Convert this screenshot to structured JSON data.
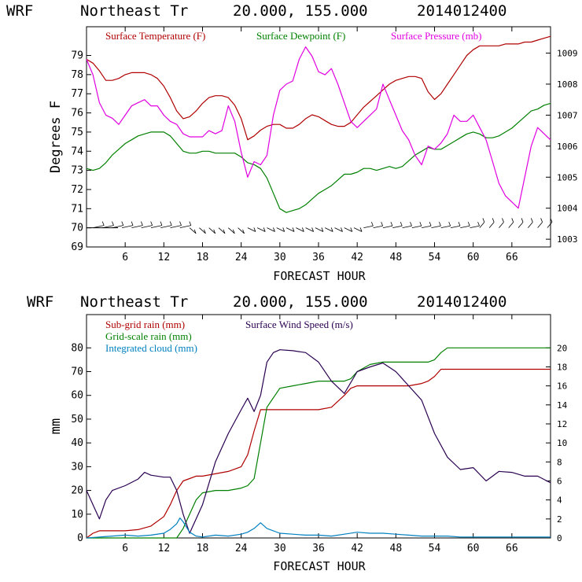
{
  "header_top": {
    "model": "WRF",
    "place": "Northeast Tr",
    "coords": "20.000, 155.000",
    "date": "2014012400"
  },
  "header_bottom": {
    "model": "WRF",
    "place": "Northeast Tr",
    "coords": "20.000, 155.000",
    "date": "2014012400"
  },
  "chart_data": [
    {
      "type": "line",
      "xlabel": "FORECAST HOUR",
      "ylabel": "Degrees F",
      "xlim": [
        0,
        72
      ],
      "ylim": [
        69,
        80.5
      ],
      "y2lim": [
        1002.75,
        1009.85
      ],
      "xticks": [
        6,
        12,
        18,
        24,
        30,
        36,
        42,
        48,
        54,
        60,
        66
      ],
      "yticks": [
        69,
        70,
        71,
        72,
        73,
        74,
        75,
        76,
        77,
        78,
        79
      ],
      "y2ticks": [
        1003,
        1004,
        1005,
        1006,
        1007,
        1008,
        1009
      ],
      "legend": [
        {
          "label": "Surface Temperature (F)",
          "color": "#b00000"
        },
        {
          "label": "Surface Dewpoint (F)",
          "color": "#008000"
        },
        {
          "label": "Surface Pressure (mb)",
          "color": "#e000e0"
        }
      ],
      "series": [
        {
          "name": "Surface Temperature (F)",
          "color": "#b00000",
          "axis": "left",
          "x": [
            0,
            1,
            2,
            3,
            4,
            5,
            6,
            7,
            8,
            9,
            10,
            11,
            12,
            13,
            14,
            15,
            16,
            17,
            18,
            19,
            20,
            21,
            22,
            23,
            24,
            25,
            26,
            27,
            28,
            29,
            30,
            31,
            32,
            33,
            34,
            35,
            36,
            37,
            38,
            39,
            40,
            41,
            42,
            43,
            44,
            45,
            46,
            47,
            48,
            49,
            50,
            51,
            52,
            53,
            54,
            55,
            56,
            57,
            58,
            59,
            60,
            61,
            62,
            63,
            64,
            65,
            66,
            67,
            68,
            69,
            70,
            71,
            72
          ],
          "y": [
            78.8,
            78.6,
            78.2,
            77.7,
            77.7,
            77.8,
            78.0,
            78.1,
            78.1,
            78.1,
            78.0,
            77.8,
            77.4,
            76.8,
            76.1,
            75.7,
            75.8,
            76.1,
            76.5,
            76.8,
            76.9,
            76.9,
            76.8,
            76.4,
            75.7,
            74.6,
            74.8,
            75.1,
            75.3,
            75.4,
            75.4,
            75.2,
            75.2,
            75.4,
            75.7,
            75.9,
            75.8,
            75.6,
            75.4,
            75.3,
            75.3,
            75.5,
            75.9,
            76.3,
            76.6,
            76.9,
            77.2,
            77.5,
            77.7,
            77.8,
            77.9,
            77.9,
            77.8,
            77.1,
            76.7,
            77.0,
            77.5,
            78.0,
            78.5,
            79.0,
            79.3,
            79.5,
            79.5,
            79.5,
            79.5,
            79.6,
            79.6,
            79.6,
            79.7,
            79.7,
            79.8,
            79.9,
            80.0
          ]
        },
        {
          "name": "Surface Dewpoint (F)",
          "color": "#008000",
          "axis": "left",
          "x": [
            0,
            1,
            2,
            3,
            4,
            5,
            6,
            7,
            8,
            9,
            10,
            11,
            12,
            13,
            14,
            15,
            16,
            17,
            18,
            19,
            20,
            21,
            22,
            23,
            24,
            25,
            26,
            27,
            28,
            29,
            30,
            31,
            32,
            33,
            34,
            35,
            36,
            37,
            38,
            39,
            40,
            41,
            42,
            43,
            44,
            45,
            46,
            47,
            48,
            49,
            50,
            51,
            52,
            53,
            54,
            55,
            56,
            57,
            58,
            59,
            60,
            61,
            62,
            63,
            64,
            65,
            66,
            67,
            68,
            69,
            70,
            71,
            72
          ],
          "y": [
            73.1,
            73.0,
            73.1,
            73.4,
            73.8,
            74.1,
            74.4,
            74.6,
            74.8,
            74.9,
            75.0,
            75.0,
            75.0,
            74.8,
            74.4,
            74.0,
            73.9,
            73.9,
            74.0,
            74.0,
            73.9,
            73.9,
            73.9,
            73.9,
            73.7,
            73.4,
            73.3,
            73.1,
            72.6,
            71.8,
            71.0,
            70.8,
            70.9,
            71.0,
            71.2,
            71.5,
            71.8,
            72.0,
            72.2,
            72.5,
            72.8,
            72.8,
            72.9,
            73.1,
            73.1,
            73.0,
            73.1,
            73.2,
            73.1,
            73.2,
            73.5,
            73.8,
            74.0,
            74.2,
            74.1,
            74.1,
            74.3,
            74.5,
            74.7,
            74.9,
            75.0,
            74.9,
            74.7,
            74.7,
            74.8,
            75.0,
            75.2,
            75.5,
            75.8,
            76.1,
            76.2,
            76.4,
            76.5
          ]
        },
        {
          "name": "Surface Pressure (mb)",
          "color": "#e000e0",
          "axis": "right",
          "x": [
            0,
            1,
            2,
            3,
            4,
            5,
            6,
            7,
            8,
            9,
            10,
            11,
            12,
            13,
            14,
            15,
            16,
            17,
            18,
            19,
            20,
            21,
            22,
            23,
            24,
            25,
            26,
            27,
            28,
            29,
            30,
            31,
            32,
            33,
            34,
            35,
            36,
            37,
            38,
            39,
            40,
            41,
            42,
            43,
            44,
            45,
            46,
            47,
            48,
            49,
            50,
            51,
            52,
            53,
            54,
            55,
            56,
            57,
            58,
            59,
            60,
            61,
            62,
            63,
            64,
            65,
            66,
            67,
            68,
            69,
            70,
            71,
            72
          ],
          "y": [
            1008.8,
            1008.3,
            1007.4,
            1007.0,
            1006.9,
            1006.7,
            1007.0,
            1007.3,
            1007.4,
            1007.5,
            1007.3,
            1007.3,
            1007.0,
            1006.8,
            1006.7,
            1006.4,
            1006.3,
            1006.3,
            1006.3,
            1006.5,
            1006.4,
            1006.5,
            1007.3,
            1006.8,
            1005.8,
            1005.0,
            1005.5,
            1005.4,
            1005.7,
            1007.0,
            1007.8,
            1008.0,
            1008.1,
            1008.8,
            1009.2,
            1008.9,
            1008.4,
            1008.3,
            1008.5,
            1008.0,
            1007.4,
            1006.8,
            1006.6,
            1006.8,
            1007.0,
            1007.2,
            1008.0,
            1007.5,
            1007.0,
            1006.5,
            1006.2,
            1005.7,
            1005.4,
            1006.0,
            1005.9,
            1006.1,
            1006.4,
            1007.0,
            1006.8,
            1006.8,
            1007.0,
            1006.6,
            1006.2,
            1005.5,
            1004.8,
            1004.4,
            1004.2,
            1004.0,
            1005.0,
            1006.0,
            1006.6,
            1006.4,
            1006.2
          ]
        }
      ],
      "wind_barbs": "surface wind barbs along 70°F line"
    },
    {
      "type": "line",
      "xlabel": "FORECAST HOUR",
      "ylabel": "mm",
      "xlim": [
        0,
        72
      ],
      "ylim": [
        0,
        94
      ],
      "y2lim": [
        0,
        23.5
      ],
      "xticks": [
        6,
        12,
        18,
        24,
        30,
        36,
        42,
        48,
        54,
        60,
        66
      ],
      "yticks": [
        0,
        10,
        20,
        30,
        40,
        50,
        60,
        70,
        80
      ],
      "y2ticks": [
        0,
        2,
        4,
        6,
        8,
        10,
        12,
        14,
        16,
        18,
        20
      ],
      "legend": [
        {
          "label": "Sub-grid rain (mm)",
          "color": "#b00000"
        },
        {
          "label": "Surface Wind Speed (m/s)",
          "color": "#2a0050"
        },
        {
          "label": "Grid-scale rain (mm)",
          "color": "#008000"
        },
        {
          "label": "Integrated cloud (mm)",
          "color": "#0080c0"
        }
      ],
      "series": [
        {
          "name": "Sub-grid rain (mm)",
          "color": "#b00000",
          "axis": "left",
          "x": [
            0,
            1,
            2,
            6,
            8,
            10,
            12,
            13,
            14,
            15,
            16,
            17,
            18,
            20,
            22,
            24,
            25,
            26,
            27,
            28,
            30,
            32,
            34,
            36,
            38,
            40,
            41,
            42,
            44,
            46,
            48,
            50,
            52,
            53,
            54,
            55,
            56,
            58,
            60,
            62,
            64,
            66,
            68,
            70,
            72
          ],
          "y": [
            0,
            2,
            3,
            3,
            3.5,
            5,
            9,
            14,
            20,
            24,
            25,
            26,
            26,
            27,
            28,
            30,
            35,
            45,
            54,
            54,
            54,
            54,
            54,
            54,
            55,
            60,
            63,
            64,
            64,
            64,
            64,
            64,
            65,
            66,
            68,
            71,
            71,
            71,
            71,
            71,
            71,
            71,
            71,
            71,
            71
          ]
        },
        {
          "name": "Grid-scale rain (mm)",
          "color": "#008000",
          "axis": "left",
          "x": [
            0,
            14,
            15,
            16,
            17,
            18,
            20,
            22,
            24,
            25,
            26,
            27,
            28,
            30,
            32,
            34,
            36,
            38,
            40,
            41,
            42,
            44,
            46,
            48,
            50,
            52,
            53,
            54,
            55,
            56,
            58,
            60,
            62,
            64,
            66,
            68,
            70,
            72
          ],
          "y": [
            0,
            0,
            4,
            10,
            16,
            19,
            20,
            20,
            21,
            22,
            25,
            40,
            55,
            63,
            64,
            65,
            66,
            66,
            66,
            67,
            70,
            73,
            74,
            74,
            74,
            74,
            74,
            75,
            78,
            80,
            80,
            80,
            80,
            80,
            80,
            80,
            80,
            80
          ]
        },
        {
          "name": "Surface Wind Speed (m/s)",
          "color": "#2a0050",
          "axis": "right",
          "x": [
            0,
            1,
            2,
            3,
            4,
            6,
            8,
            9,
            10,
            12,
            13,
            14,
            15,
            16,
            18,
            20,
            22,
            24,
            25,
            26,
            27,
            28,
            29,
            30,
            32,
            34,
            36,
            38,
            40,
            42,
            44,
            46,
            48,
            50,
            52,
            54,
            56,
            58,
            60,
            62,
            64,
            66,
            68,
            70,
            72
          ],
          "y": [
            5,
            3.5,
            2,
            4,
            5,
            5.5,
            6.2,
            6.9,
            6.6,
            6.4,
            6.4,
            5,
            2.5,
            0.5,
            3.5,
            8,
            11,
            13.5,
            14.7,
            13.3,
            15,
            18.5,
            19.5,
            19.8,
            19.7,
            19.5,
            18.5,
            16.5,
            15.2,
            17.5,
            18.0,
            18.4,
            17.5,
            16,
            14.5,
            11,
            8.5,
            7.2,
            7.4,
            6.0,
            7.0,
            6.9,
            6.5,
            6.5,
            5.8
          ]
        },
        {
          "name": "Integrated cloud (mm)",
          "color": "#0080c0",
          "axis": "right",
          "x": [
            0,
            2,
            4,
            6,
            8,
            10,
            12,
            13,
            14,
            14.5,
            15,
            16,
            17,
            18,
            20,
            22,
            24,
            25,
            26,
            27,
            28,
            30,
            32,
            34,
            36,
            38,
            40,
            42,
            44,
            46,
            48,
            50,
            52,
            54,
            56,
            58,
            60,
            62,
            64,
            66,
            68,
            70,
            72
          ],
          "y": [
            0,
            0.1,
            0.2,
            0.3,
            0.2,
            0.3,
            0.5,
            0.9,
            1.5,
            2.1,
            1.7,
            0.6,
            0.2,
            0.1,
            0.3,
            0.2,
            0.4,
            0.6,
            1.0,
            1.6,
            1.0,
            0.5,
            0.4,
            0.3,
            0.3,
            0.2,
            0.4,
            0.6,
            0.5,
            0.5,
            0.4,
            0.3,
            0.2,
            0.2,
            0.2,
            0.1,
            0.1,
            0.1,
            0.1,
            0.1,
            0.1,
            0.1,
            0.1
          ]
        }
      ]
    }
  ]
}
